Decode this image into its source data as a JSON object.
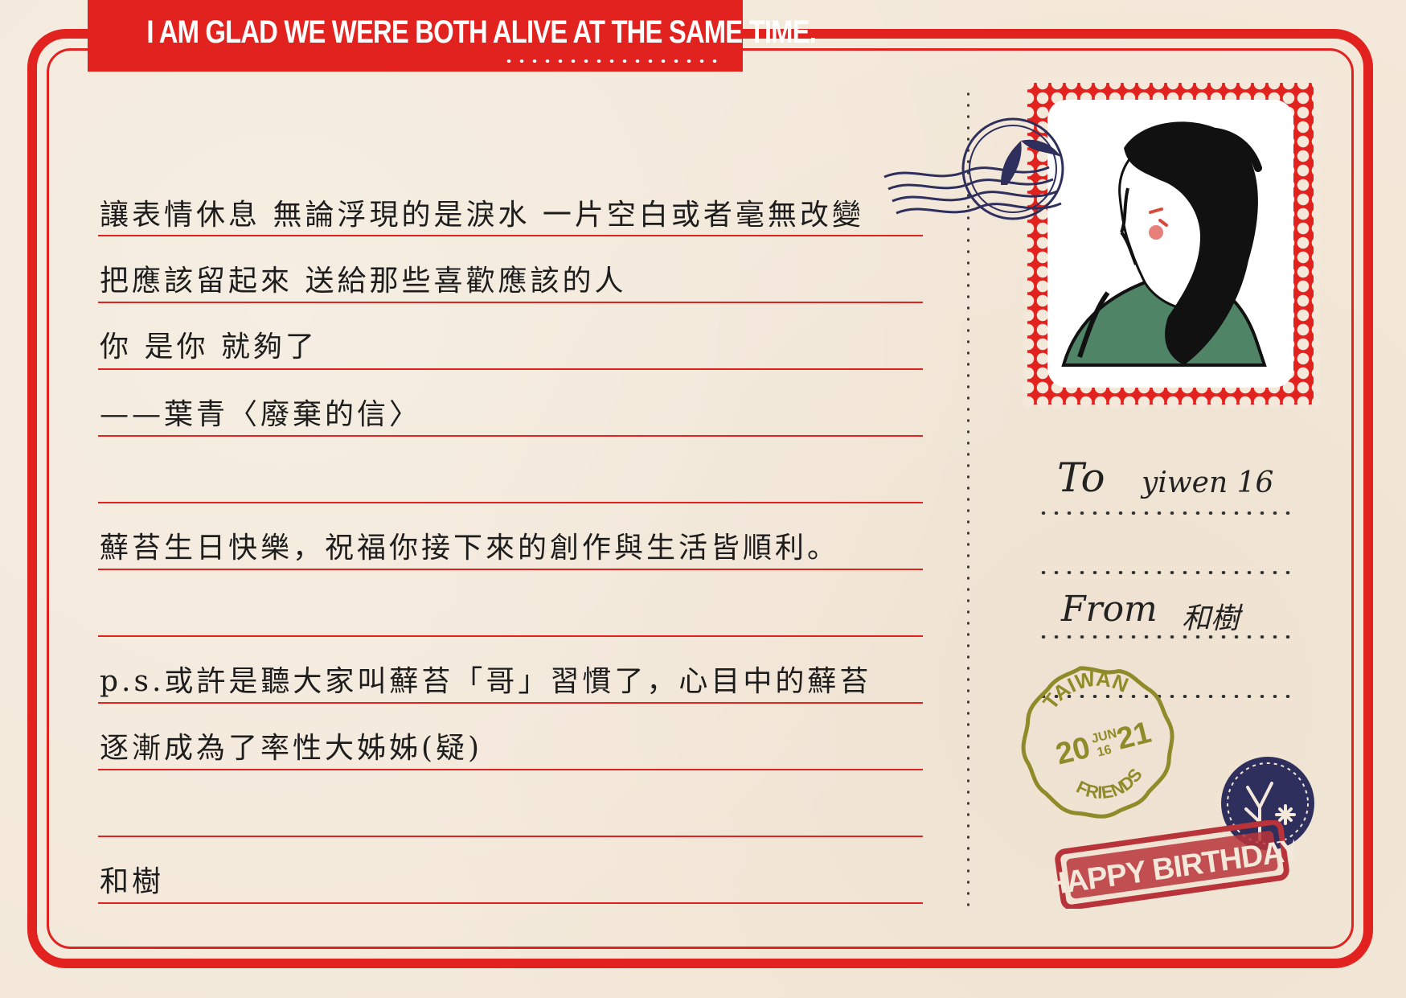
{
  "banner": {
    "text": "I AM GLAD WE WERE BOTH ALIVE AT THE SAME TIME."
  },
  "message_lines": [
    "讓表情休息 無論浮現的是淚水  一片空白或者毫無改變",
    "把應該留起來 送給那些喜歡應該的人",
    "你  是你  就夠了",
    "——葉青〈廢棄的信〉",
    "",
    "蘚苔生日快樂，祝福你接下來的創作與生活皆順利。",
    "",
    "p.s.或許是聽大家叫蘚苔「哥」習慣了，心目中的蘚苔",
    "逐漸成為了率性大姊姊(疑)",
    "",
    "和樹"
  ],
  "address": {
    "to_label": "To",
    "to_value": "yiwen 16",
    "from_label": "From",
    "from_value": "和樹"
  },
  "postmark": {
    "country": "TAIWAN",
    "year_left": "20",
    "year_right": "21",
    "month": "JUN",
    "day": "16",
    "bottom": "FRIENDS"
  },
  "rubber_stamp": {
    "text": "HAPPY BIRTHDAY"
  },
  "colors": {
    "red": "#e2221f",
    "paper": "#f3e8d9",
    "navy": "#2e2f5c",
    "olive": "#8f8a2a",
    "stamp_red": "#b9343a"
  }
}
